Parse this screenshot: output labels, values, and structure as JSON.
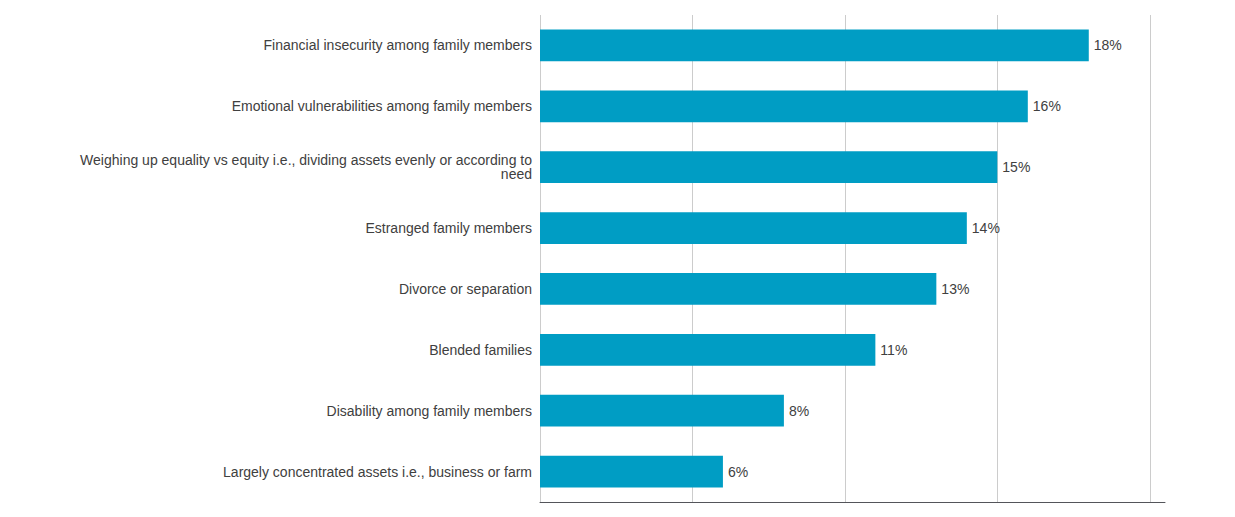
{
  "chart_data": {
    "type": "bar",
    "orientation": "horizontal",
    "categories": [
      "Largely concentrated assets i.e., business or farm",
      "Disability among family members",
      "Blended families",
      "Divorce or separation",
      "Estranged family members",
      "Weighing up equality vs equity i.e., dividing assets evenly or according to\nneed",
      "Emotional vulnerabilities among family members",
      "Financial insecurity among family members"
    ],
    "values": [
      6,
      8,
      11,
      13,
      14,
      15,
      16,
      18
    ],
    "value_labels": [
      "6%",
      "8%",
      "11%",
      "13%",
      "14%",
      "15%",
      "16%",
      "18%"
    ],
    "data_labels": true,
    "color": "#009DC4",
    "xlim": [
      0,
      20.5
    ],
    "xticks": [
      0,
      5,
      10,
      15,
      20
    ],
    "grid": true,
    "tick_labels": "y"
  }
}
